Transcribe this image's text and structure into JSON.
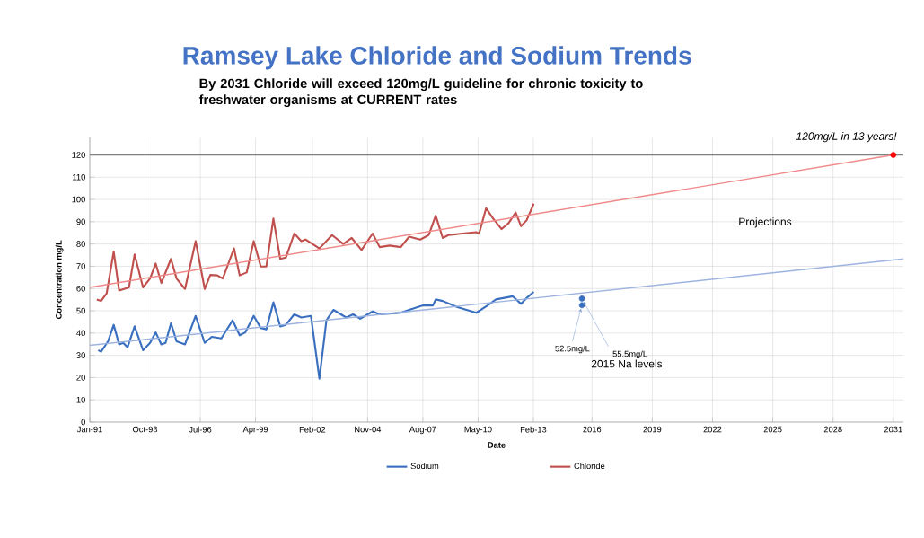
{
  "chart_data": {
    "type": "line",
    "title": "Ramsey Lake Chloride and Sodium Trends",
    "subtitle": "By 2031 Chloride will exceed 120mg/L guideline for chronic toxicity to freshwater organisms at CURRENT rates",
    "xlabel": "Date",
    "ylabel": "Concentration mg/L",
    "xlim": [
      1991,
      2031.5
    ],
    "ylim": [
      0,
      128
    ],
    "xticks": [
      {
        "value": 1991.0,
        "label": "Jan-91"
      },
      {
        "value": 1993.75,
        "label": "Oct-93"
      },
      {
        "value": 1996.5,
        "label": "Jul-96"
      },
      {
        "value": 1999.25,
        "label": "Apr-99"
      },
      {
        "value": 2002.08,
        "label": "Feb-02"
      },
      {
        "value": 2004.83,
        "label": "Nov-04"
      },
      {
        "value": 2007.58,
        "label": "Aug-07"
      },
      {
        "value": 2010.33,
        "label": "May-10"
      },
      {
        "value": 2013.08,
        "label": "Feb-13"
      },
      2016,
      2019,
      2022,
      2025,
      2028,
      2031
    ],
    "yticks": [
      0,
      10,
      20,
      30,
      40,
      50,
      60,
      70,
      80,
      90,
      100,
      110,
      120
    ],
    "grid": true,
    "legend": "bottom",
    "line_style": "solid",
    "marker": "none",
    "series": [
      {
        "name": "Sodium",
        "color": "#3a6fc0",
        "x": [
          1991.42,
          1991.56,
          1991.91,
          1992.19,
          1992.46,
          1992.67,
          1992.88,
          1993.23,
          1993.65,
          1994.0,
          1994.28,
          1994.56,
          1994.77,
          1995.04,
          1995.32,
          1995.74,
          1996.27,
          1996.72,
          1997.07,
          1997.55,
          1998.11,
          1998.46,
          1998.74,
          1999.16,
          1999.51,
          1999.79,
          2000.14,
          2000.48,
          2000.76,
          2001.18,
          2001.53,
          2002.01,
          2002.43,
          2002.78,
          2003.13,
          2003.76,
          2004.11,
          2004.46,
          2005.08,
          2005.43,
          2006.48,
          2006.9,
          2007.59,
          2008.08,
          2008.22,
          2008.57,
          2009.27,
          2010.24,
          2010.8,
          2011.22,
          2012.06,
          2012.47,
          2012.75,
          2013.1
        ],
        "values": [
          32.3,
          31.6,
          36.3,
          43.7,
          34.9,
          35.6,
          33.6,
          43,
          32.3,
          35.6,
          40.3,
          34.9,
          35.6,
          44.4,
          36.3,
          34.9,
          47.7,
          35.6,
          38.3,
          37.6,
          45.7,
          39,
          40.3,
          47.7,
          42.3,
          41.7,
          53.8,
          43,
          43.7,
          48.4,
          47,
          47.7,
          19.5,
          45.7,
          50.4,
          47,
          48.4,
          46.4,
          49.7,
          48.4,
          49.1,
          50.4,
          52.4,
          52.4,
          55.1,
          54.4,
          51.7,
          49.1,
          52.4,
          55.1,
          56.5,
          53.1,
          55.8,
          58.5
        ]
      },
      {
        "name": "Chloride",
        "color": "#c0504d",
        "x": [
          1991.35,
          1991.56,
          1991.84,
          1992.19,
          1992.46,
          1992.95,
          1993.23,
          1993.65,
          1994.0,
          1994.28,
          1994.56,
          1995.04,
          1995.32,
          1995.74,
          1996.27,
          1996.72,
          1997.0,
          1997.35,
          1997.62,
          1998.18,
          1998.46,
          1998.81,
          1999.16,
          1999.51,
          1999.79,
          2000.14,
          2000.48,
          2000.76,
          2001.18,
          2001.53,
          2001.74,
          2002.43,
          2003.06,
          2003.62,
          2004.04,
          2004.53,
          2005.08,
          2005.43,
          2005.92,
          2006.48,
          2006.9,
          2007.45,
          2007.87,
          2008.22,
          2008.57,
          2008.85,
          2009.55,
          2010.24,
          2010.38,
          2010.73,
          2011.08,
          2011.5,
          2011.85,
          2012.2,
          2012.47,
          2012.75,
          2013.1
        ],
        "values": [
          55.1,
          54.4,
          57.8,
          76.6,
          59.1,
          60.5,
          75.3,
          60.5,
          64.5,
          71.2,
          62.5,
          73.3,
          64.5,
          59.8,
          81.3,
          59.8,
          66.1,
          65.9,
          64.5,
          78,
          65.9,
          67.2,
          81.3,
          69.9,
          69.9,
          91.4,
          73.3,
          73.9,
          84.7,
          81.3,
          82,
          78,
          84,
          80,
          82.7,
          77.3,
          84.7,
          78.6,
          79.3,
          78.6,
          83.3,
          82,
          84,
          92.7,
          82.7,
          84,
          84.7,
          85.3,
          84.7,
          96.1,
          91.4,
          86.7,
          89.4,
          94.1,
          88,
          90.7,
          98.1
        ]
      },
      {
        "type": "line",
        "color": "#9db4e0",
        "x": [
          1991,
          2031.5
        ],
        "values": [
          34.5,
          73.3
        ]
      },
      {
        "type": "line",
        "color": "#f08a8a",
        "x": [
          1991,
          2031
        ],
        "values": [
          60.5,
          120
        ]
      },
      {
        "type": "scatter",
        "marker": "circle",
        "color": "#3a6fc0",
        "x": [
          2015.5,
          2015.5
        ],
        "values": [
          52.5,
          55.5
        ]
      },
      {
        "type": "scatter",
        "marker": "circle",
        "color": "#ff0000",
        "x": [
          2031
        ],
        "values": [
          120
        ]
      }
    ],
    "ref_lines": [
      {
        "axis": "y",
        "value": 120,
        "color": "#808080"
      }
    ],
    "annotations": [
      "120mg/L in 13 years!",
      {
        "text": "52.5mg/L",
        "x": 2015.5,
        "y": 52.5
      },
      {
        "text": "55.5mg/L",
        "x": 2015.5,
        "y": 55.5
      },
      "Projections",
      "2015 Na levels"
    ]
  }
}
